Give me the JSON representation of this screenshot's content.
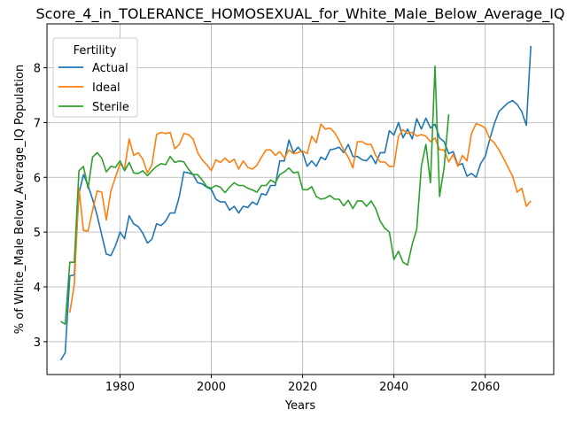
{
  "chart_data": {
    "type": "line",
    "title": "Score_4_in_TOLERANCE_HOMOSEXUAL_for_White_Male_Below_Average_IQ",
    "xlabel": "Years",
    "ylabel": "% of White_Male Below_Average_IQ Population",
    "xlim": [
      1964,
      2075
    ],
    "ylim": [
      2.4,
      8.8
    ],
    "xticks": [
      1980,
      2000,
      2020,
      2040,
      2060
    ],
    "yticks": [
      3,
      4,
      5,
      6,
      7,
      8
    ],
    "grid": true,
    "legend": {
      "title": "Fertility",
      "position": "top-left"
    },
    "series": [
      {
        "name": "Actual",
        "color": "#1f77b4",
        "points": [
          [
            1967,
            2.66
          ],
          [
            1968,
            2.8
          ],
          [
            1969,
            4.2
          ],
          [
            1970,
            4.22
          ],
          [
            1971,
            5.7
          ],
          [
            1972,
            6.05
          ],
          [
            1973,
            5.85
          ],
          [
            1974,
            5.6
          ],
          [
            1975,
            5.3
          ],
          [
            1976,
            4.95
          ],
          [
            1977,
            4.6
          ],
          [
            1978,
            4.57
          ],
          [
            1979,
            4.75
          ],
          [
            1980,
            5.0
          ],
          [
            1981,
            4.88
          ],
          [
            1982,
            5.3
          ],
          [
            1983,
            5.15
          ],
          [
            1984,
            5.1
          ],
          [
            1985,
            4.98
          ],
          [
            1986,
            4.8
          ],
          [
            1987,
            4.87
          ],
          [
            1988,
            5.15
          ],
          [
            1989,
            5.12
          ],
          [
            1990,
            5.2
          ],
          [
            1991,
            5.35
          ],
          [
            1992,
            5.35
          ],
          [
            1993,
            5.65
          ],
          [
            1994,
            6.1
          ],
          [
            1995,
            6.08
          ],
          [
            1996,
            6.05
          ],
          [
            1997,
            5.9
          ],
          [
            1998,
            5.88
          ],
          [
            1999,
            5.82
          ],
          [
            2000,
            5.78
          ],
          [
            2001,
            5.6
          ],
          [
            2002,
            5.55
          ],
          [
            2003,
            5.55
          ],
          [
            2004,
            5.4
          ],
          [
            2005,
            5.47
          ],
          [
            2006,
            5.35
          ],
          [
            2007,
            5.47
          ],
          [
            2008,
            5.45
          ],
          [
            2009,
            5.55
          ],
          [
            2010,
            5.5
          ],
          [
            2011,
            5.7
          ],
          [
            2012,
            5.68
          ],
          [
            2013,
            5.85
          ],
          [
            2014,
            5.85
          ],
          [
            2015,
            6.3
          ],
          [
            2016,
            6.3
          ],
          [
            2017,
            6.68
          ],
          [
            2018,
            6.45
          ],
          [
            2019,
            6.55
          ],
          [
            2020,
            6.45
          ],
          [
            2021,
            6.2
          ],
          [
            2022,
            6.3
          ],
          [
            2023,
            6.2
          ],
          [
            2024,
            6.37
          ],
          [
            2025,
            6.32
          ],
          [
            2026,
            6.5
          ],
          [
            2027,
            6.52
          ],
          [
            2028,
            6.55
          ],
          [
            2029,
            6.45
          ],
          [
            2030,
            6.6
          ],
          [
            2031,
            6.38
          ],
          [
            2032,
            6.38
          ],
          [
            2033,
            6.32
          ],
          [
            2034,
            6.3
          ],
          [
            2035,
            6.4
          ],
          [
            2036,
            6.25
          ],
          [
            2037,
            6.45
          ],
          [
            2038,
            6.45
          ],
          [
            2039,
            6.85
          ],
          [
            2040,
            6.77
          ],
          [
            2041,
            7.0
          ],
          [
            2042,
            6.72
          ],
          [
            2043,
            6.88
          ],
          [
            2044,
            6.7
          ],
          [
            2045,
            7.07
          ],
          [
            2046,
            6.88
          ],
          [
            2047,
            7.08
          ],
          [
            2048,
            6.9
          ],
          [
            2049,
            6.97
          ],
          [
            2050,
            6.72
          ],
          [
            2051,
            6.65
          ],
          [
            2052,
            6.43
          ],
          [
            2053,
            6.47
          ],
          [
            2054,
            6.22
          ],
          [
            2055,
            6.25
          ],
          [
            2056,
            6.02
          ],
          [
            2057,
            6.07
          ],
          [
            2058,
            6.0
          ],
          [
            2059,
            6.25
          ],
          [
            2060,
            6.38
          ],
          [
            2061,
            6.7
          ],
          [
            2062,
            6.98
          ],
          [
            2063,
            7.2
          ],
          [
            2064,
            7.28
          ],
          [
            2065,
            7.36
          ],
          [
            2066,
            7.4
          ],
          [
            2067,
            7.33
          ],
          [
            2068,
            7.2
          ],
          [
            2069,
            6.95
          ],
          [
            2070,
            8.4
          ]
        ]
      },
      {
        "name": "Ideal",
        "color": "#ff7f0e",
        "points": [
          [
            1969,
            3.53
          ],
          [
            1970,
            4.05
          ],
          [
            1971,
            5.8
          ],
          [
            1972,
            5.03
          ],
          [
            1973,
            5.02
          ],
          [
            1974,
            5.4
          ],
          [
            1975,
            5.75
          ],
          [
            1976,
            5.73
          ],
          [
            1977,
            5.22
          ],
          [
            1978,
            5.75
          ],
          [
            1979,
            6.0
          ],
          [
            1980,
            6.25
          ],
          [
            1981,
            6.15
          ],
          [
            1982,
            6.7
          ],
          [
            1983,
            6.4
          ],
          [
            1984,
            6.45
          ],
          [
            1985,
            6.33
          ],
          [
            1986,
            6.08
          ],
          [
            1987,
            6.23
          ],
          [
            1988,
            6.78
          ],
          [
            1989,
            6.82
          ],
          [
            1990,
            6.8
          ],
          [
            1991,
            6.82
          ],
          [
            1992,
            6.52
          ],
          [
            1993,
            6.6
          ],
          [
            1994,
            6.8
          ],
          [
            1995,
            6.78
          ],
          [
            1996,
            6.7
          ],
          [
            1997,
            6.45
          ],
          [
            1998,
            6.32
          ],
          [
            1999,
            6.23
          ],
          [
            2000,
            6.12
          ],
          [
            2001,
            6.32
          ],
          [
            2002,
            6.27
          ],
          [
            2003,
            6.35
          ],
          [
            2004,
            6.27
          ],
          [
            2005,
            6.33
          ],
          [
            2006,
            6.15
          ],
          [
            2007,
            6.3
          ],
          [
            2008,
            6.18
          ],
          [
            2009,
            6.15
          ],
          [
            2010,
            6.22
          ],
          [
            2011,
            6.37
          ],
          [
            2012,
            6.5
          ],
          [
            2013,
            6.5
          ],
          [
            2014,
            6.4
          ],
          [
            2015,
            6.47
          ],
          [
            2016,
            6.35
          ],
          [
            2017,
            6.5
          ],
          [
            2018,
            6.43
          ],
          [
            2019,
            6.45
          ],
          [
            2020,
            6.48
          ],
          [
            2021,
            6.43
          ],
          [
            2022,
            6.75
          ],
          [
            2023,
            6.63
          ],
          [
            2024,
            6.97
          ],
          [
            2025,
            6.88
          ],
          [
            2026,
            6.9
          ],
          [
            2027,
            6.82
          ],
          [
            2028,
            6.67
          ],
          [
            2029,
            6.5
          ],
          [
            2030,
            6.37
          ],
          [
            2031,
            6.17
          ],
          [
            2032,
            6.65
          ],
          [
            2033,
            6.65
          ],
          [
            2034,
            6.6
          ],
          [
            2035,
            6.6
          ],
          [
            2036,
            6.4
          ],
          [
            2037,
            6.28
          ],
          [
            2038,
            6.28
          ],
          [
            2039,
            6.2
          ],
          [
            2040,
            6.2
          ],
          [
            2041,
            6.75
          ],
          [
            2042,
            6.87
          ],
          [
            2043,
            6.8
          ],
          [
            2044,
            6.82
          ],
          [
            2045,
            6.75
          ],
          [
            2046,
            6.78
          ],
          [
            2047,
            6.75
          ],
          [
            2048,
            6.65
          ],
          [
            2049,
            6.72
          ],
          [
            2050,
            6.5
          ],
          [
            2051,
            6.5
          ],
          [
            2052,
            6.28
          ],
          [
            2053,
            6.42
          ],
          [
            2054,
            6.2
          ],
          [
            2055,
            6.4
          ],
          [
            2056,
            6.3
          ],
          [
            2057,
            6.8
          ],
          [
            2058,
            6.98
          ],
          [
            2059,
            6.95
          ],
          [
            2060,
            6.9
          ],
          [
            2061,
            6.7
          ],
          [
            2062,
            6.63
          ],
          [
            2063,
            6.5
          ],
          [
            2064,
            6.35
          ],
          [
            2065,
            6.18
          ],
          [
            2066,
            6.02
          ],
          [
            2067,
            5.73
          ],
          [
            2068,
            5.8
          ],
          [
            2069,
            5.47
          ],
          [
            2070,
            5.57
          ]
        ]
      },
      {
        "name": "Sterile",
        "color": "#2ca02c",
        "points": [
          [
            1967,
            3.37
          ],
          [
            1968,
            3.32
          ],
          [
            1969,
            4.45
          ],
          [
            1970,
            4.45
          ],
          [
            1971,
            6.12
          ],
          [
            1972,
            6.2
          ],
          [
            1973,
            5.8
          ],
          [
            1974,
            6.37
          ],
          [
            1975,
            6.45
          ],
          [
            1976,
            6.35
          ],
          [
            1977,
            6.1
          ],
          [
            1978,
            6.2
          ],
          [
            1979,
            6.18
          ],
          [
            1980,
            6.3
          ],
          [
            1981,
            6.12
          ],
          [
            1982,
            6.27
          ],
          [
            1983,
            6.08
          ],
          [
            1984,
            6.07
          ],
          [
            1985,
            6.12
          ],
          [
            1986,
            6.03
          ],
          [
            1987,
            6.12
          ],
          [
            1988,
            6.2
          ],
          [
            1989,
            6.25
          ],
          [
            1990,
            6.23
          ],
          [
            1991,
            6.38
          ],
          [
            1992,
            6.27
          ],
          [
            1993,
            6.3
          ],
          [
            1994,
            6.28
          ],
          [
            1995,
            6.15
          ],
          [
            1996,
            6.05
          ],
          [
            1997,
            6.05
          ],
          [
            1998,
            5.95
          ],
          [
            1999,
            5.83
          ],
          [
            2000,
            5.8
          ],
          [
            2001,
            5.85
          ],
          [
            2002,
            5.82
          ],
          [
            2003,
            5.72
          ],
          [
            2004,
            5.82
          ],
          [
            2005,
            5.9
          ],
          [
            2006,
            5.85
          ],
          [
            2007,
            5.85
          ],
          [
            2008,
            5.8
          ],
          [
            2009,
            5.77
          ],
          [
            2010,
            5.73
          ],
          [
            2011,
            5.85
          ],
          [
            2012,
            5.85
          ],
          [
            2013,
            5.95
          ],
          [
            2014,
            5.9
          ],
          [
            2015,
            6.05
          ],
          [
            2016,
            6.1
          ],
          [
            2017,
            6.17
          ],
          [
            2018,
            6.08
          ],
          [
            2019,
            6.1
          ],
          [
            2020,
            5.78
          ],
          [
            2021,
            5.77
          ],
          [
            2022,
            5.83
          ],
          [
            2023,
            5.65
          ],
          [
            2024,
            5.6
          ],
          [
            2025,
            5.62
          ],
          [
            2026,
            5.67
          ],
          [
            2027,
            5.6
          ],
          [
            2028,
            5.6
          ],
          [
            2029,
            5.48
          ],
          [
            2030,
            5.58
          ],
          [
            2031,
            5.43
          ],
          [
            2032,
            5.57
          ],
          [
            2033,
            5.57
          ],
          [
            2034,
            5.47
          ],
          [
            2035,
            5.57
          ],
          [
            2036,
            5.43
          ],
          [
            2037,
            5.2
          ],
          [
            2038,
            5.07
          ],
          [
            2039,
            5.0
          ],
          [
            2040,
            4.5
          ],
          [
            2041,
            4.65
          ],
          [
            2042,
            4.45
          ],
          [
            2043,
            4.4
          ],
          [
            2044,
            4.78
          ],
          [
            2045,
            5.05
          ],
          [
            2046,
            6.2
          ],
          [
            2047,
            6.6
          ],
          [
            2048,
            5.9
          ],
          [
            2049,
            8.03
          ],
          [
            2050,
            5.65
          ],
          [
            2051,
            6.18
          ],
          [
            2052,
            7.15
          ]
        ]
      }
    ]
  }
}
